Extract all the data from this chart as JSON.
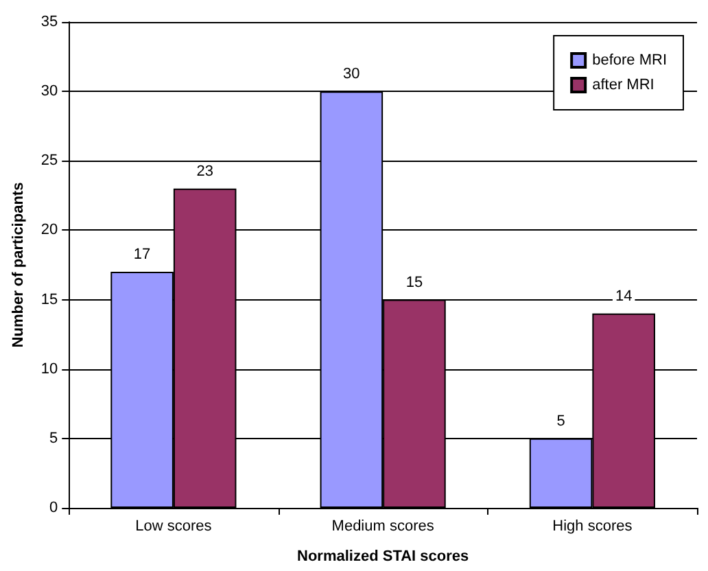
{
  "chart_data": {
    "type": "bar",
    "xlabel": "Normalized STAI scores",
    "ylabel": "Number of participants",
    "categories": [
      "Low scores",
      "Medium scores",
      "High scores"
    ],
    "series": [
      {
        "name": "before MRI",
        "color": "#9999ff",
        "values": [
          17,
          30,
          5
        ]
      },
      {
        "name": "after MRI",
        "color": "#993366",
        "values": [
          23,
          15,
          14
        ]
      }
    ],
    "ylim": [
      0,
      35
    ],
    "yticks": [
      0,
      5,
      10,
      15,
      20,
      25,
      30,
      35
    ],
    "grid": "y",
    "legend": "top right",
    "data_labels": true
  }
}
